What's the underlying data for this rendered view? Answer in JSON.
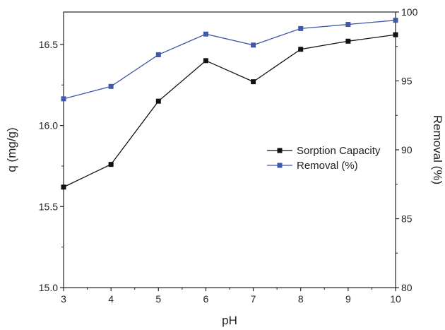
{
  "chart_data": {
    "type": "line",
    "xlabel": "pH",
    "ylabel_left": "q (mg/g)",
    "ylabel_right": "Removal (%)",
    "x": [
      3,
      4,
      5,
      6,
      7,
      8,
      9,
      10
    ],
    "xlim": [
      3,
      10
    ],
    "x_ticks": [
      "3",
      "4",
      "5",
      "6",
      "7",
      "8",
      "9",
      "10"
    ],
    "ylim_left": [
      15.0,
      16.7
    ],
    "y_ticks_left": [
      "15.0",
      "15.5",
      "16.0",
      "16.5"
    ],
    "ylim_right": [
      80,
      100
    ],
    "y_ticks_right": [
      "80",
      "85",
      "90",
      "95",
      "100"
    ],
    "grid": false,
    "legend_position": "center-right",
    "series": [
      {
        "name": "Sorption Capacity",
        "axis": "left",
        "color": "#111111",
        "marker": "square",
        "values": [
          15.62,
          15.76,
          16.15,
          16.4,
          16.27,
          16.47,
          16.52,
          16.56
        ]
      },
      {
        "name": "Removal (%)",
        "axis": "right",
        "color": "#3f58a8",
        "marker": "square",
        "values": [
          93.7,
          94.6,
          96.9,
          98.4,
          97.6,
          98.8,
          99.1,
          99.4
        ]
      }
    ]
  }
}
